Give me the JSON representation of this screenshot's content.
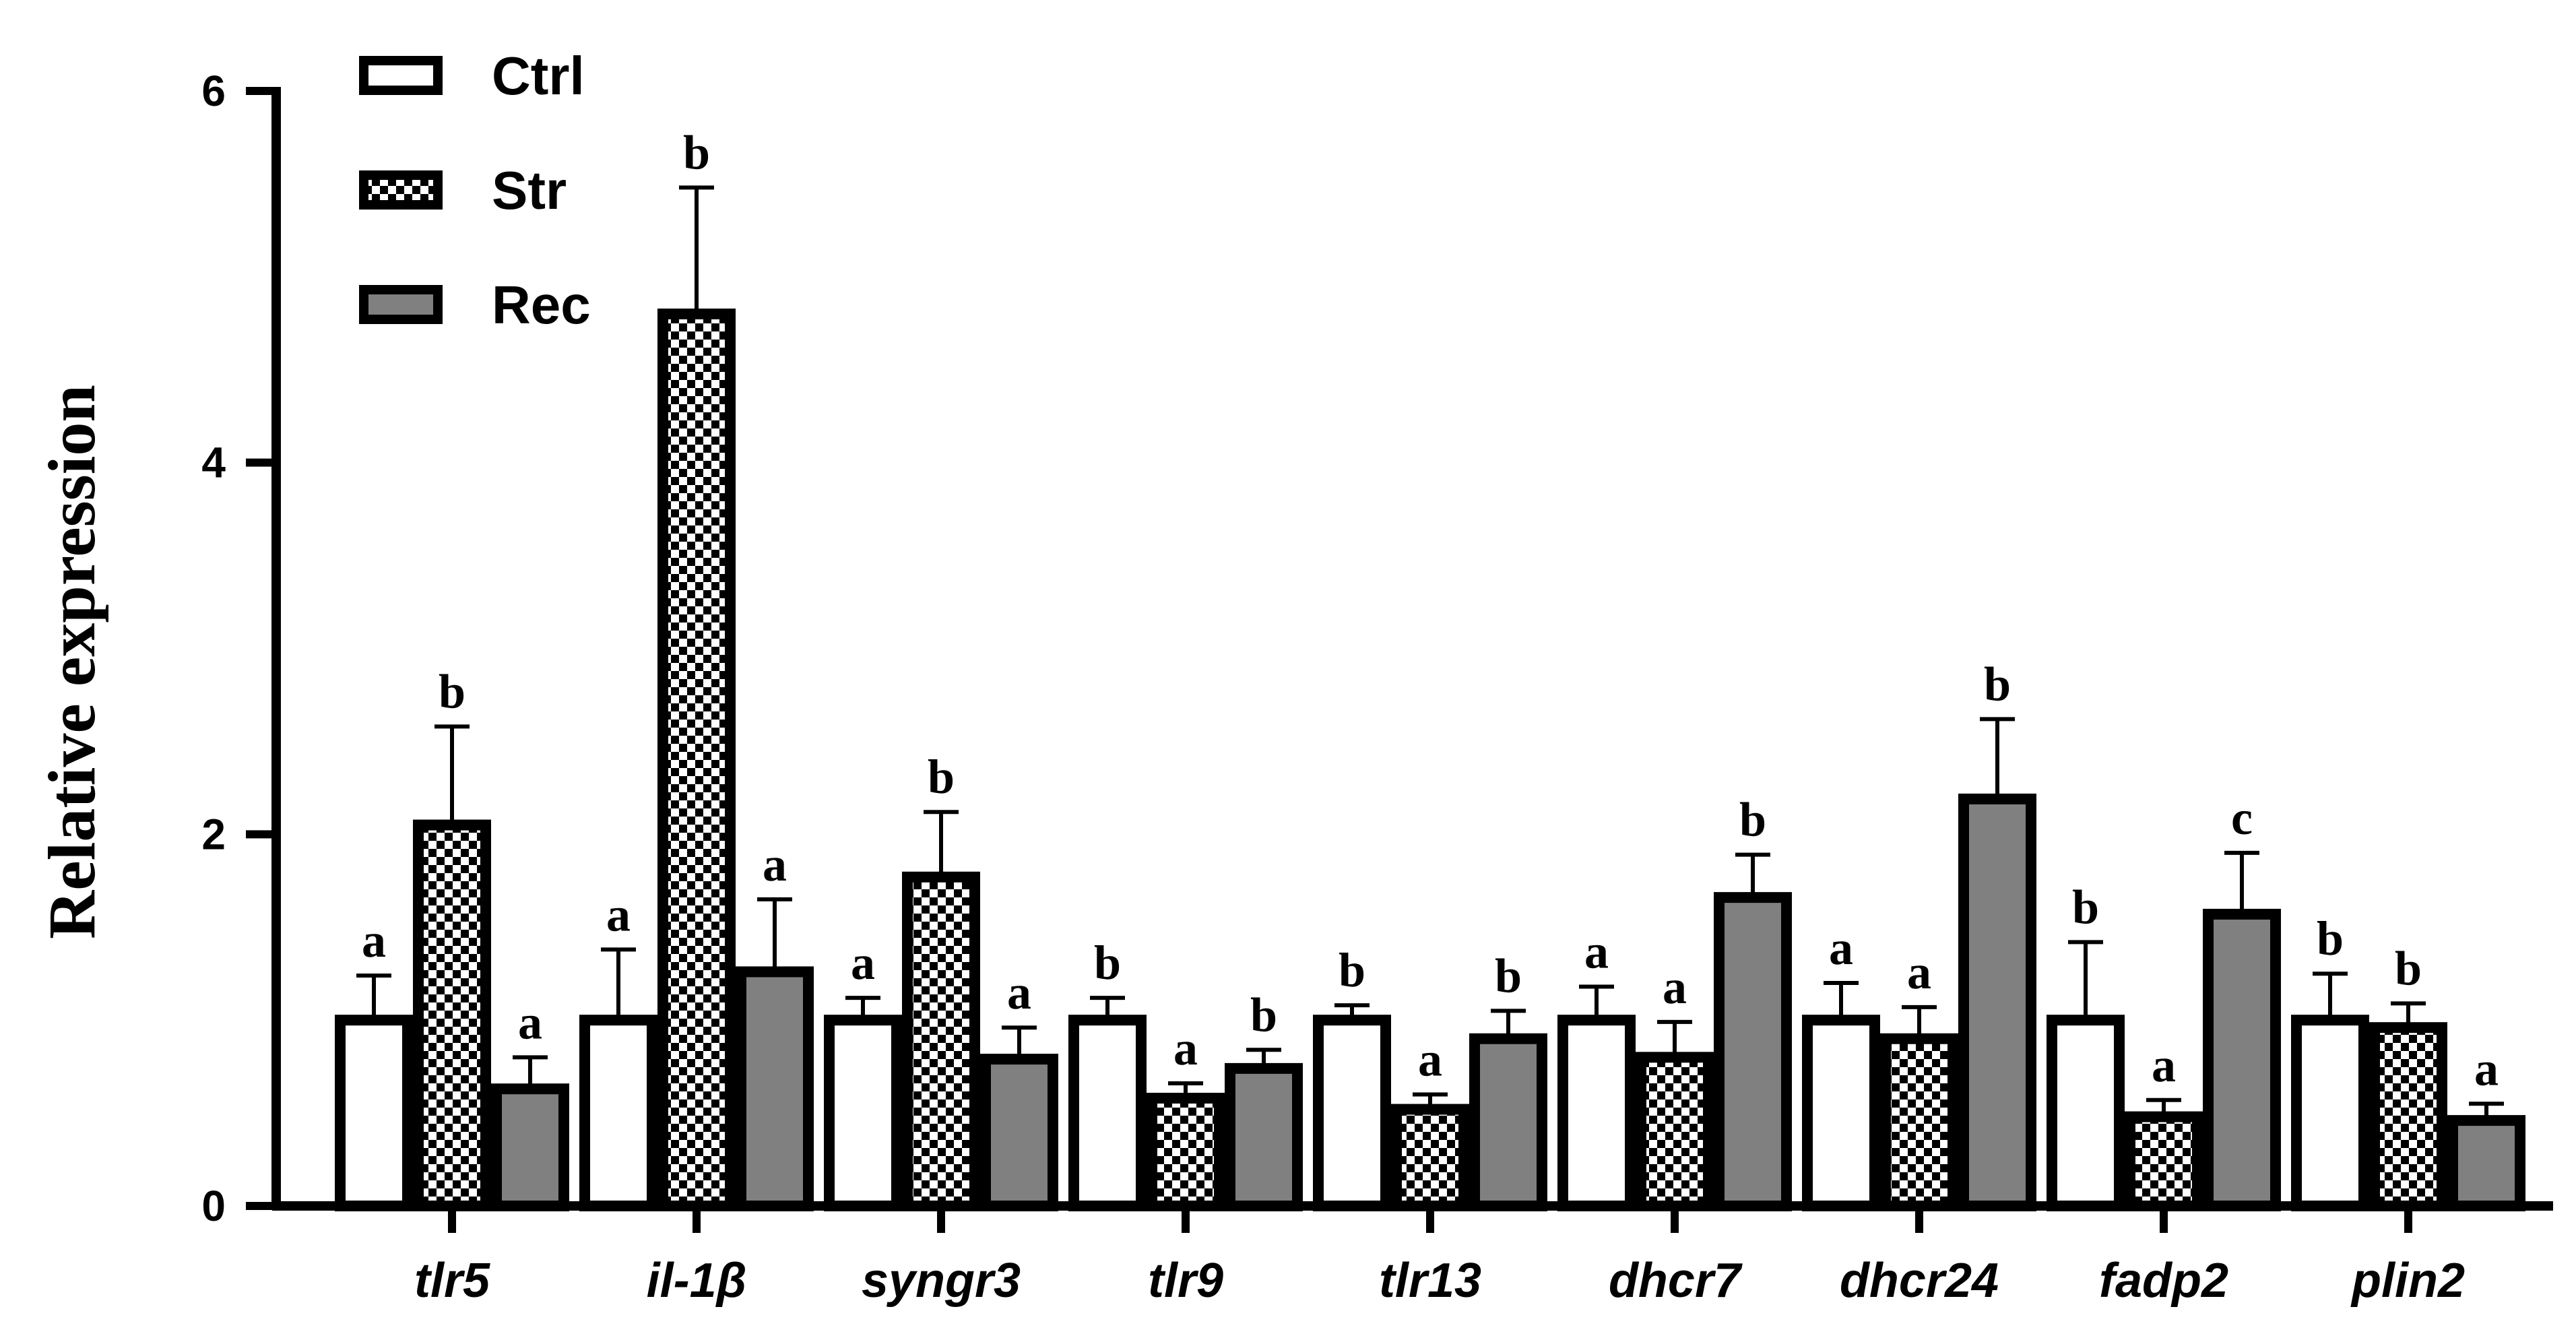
{
  "chart_data": {
    "type": "bar",
    "title": "",
    "xlabel": "",
    "ylabel": "Relative expression",
    "ylim": [
      0,
      6
    ],
    "yticks": [
      "0",
      "2",
      "4",
      "6"
    ],
    "grid": false,
    "legend_position": "top-left",
    "categories": [
      "tlr5",
      "il-1β",
      "syngr3",
      "tlr9",
      "tlr13",
      "dhcr7",
      "dhcr24",
      "fadp2",
      "plin2"
    ],
    "series": [
      {
        "name": "Ctrl",
        "pattern": "white",
        "values": [
          1.0,
          1.0,
          1.0,
          1.0,
          1.0,
          1.0,
          1.0,
          1.0,
          1.0
        ],
        "errors": [
          0.24,
          0.38,
          0.12,
          0.12,
          0.08,
          0.18,
          0.2,
          0.42,
          0.25
        ],
        "significance": [
          "a",
          "a",
          "a",
          "b",
          "b",
          "a",
          "a",
          "b",
          "b"
        ]
      },
      {
        "name": "Str",
        "pattern": "checkered",
        "values": [
          2.05,
          4.8,
          1.77,
          0.58,
          0.52,
          0.8,
          0.9,
          0.48,
          0.96
        ],
        "errors": [
          0.53,
          0.68,
          0.35,
          0.08,
          0.08,
          0.19,
          0.17,
          0.09,
          0.13
        ],
        "significance": [
          "b",
          "b",
          "b",
          "a",
          "a",
          "a",
          "a",
          "a",
          "b"
        ]
      },
      {
        "name": "Rec",
        "pattern": "gray",
        "values": [
          0.63,
          1.26,
          0.79,
          0.74,
          0.9,
          1.66,
          2.19,
          1.57,
          0.46
        ],
        "errors": [
          0.17,
          0.39,
          0.17,
          0.1,
          0.15,
          0.23,
          0.43,
          0.33,
          0.09
        ],
        "significance": [
          "a",
          "a",
          "a",
          "b",
          "b",
          "b",
          "b",
          "c",
          "a"
        ]
      }
    ]
  },
  "colors": {
    "axis": "#000000",
    "ctrl_fill": "#ffffff",
    "str_light": "#ffffff",
    "str_dark": "#000000",
    "rec_fill": "#808080"
  }
}
